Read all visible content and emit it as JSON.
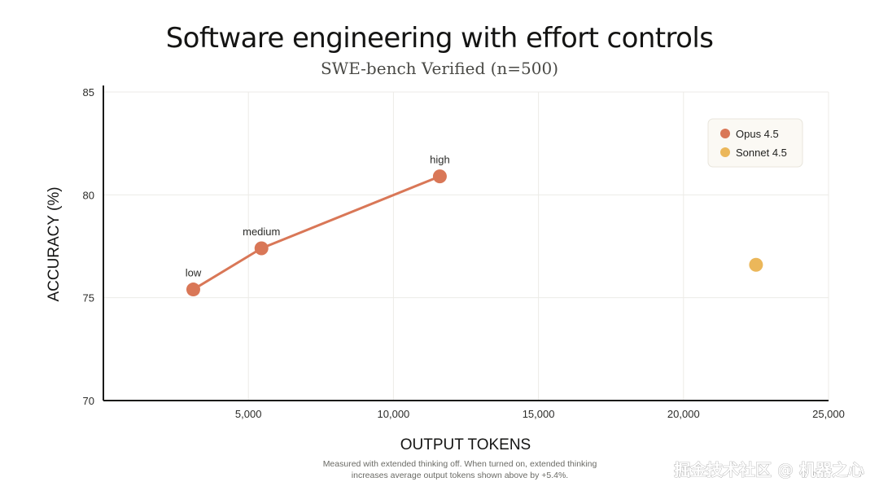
{
  "chart_data": {
    "type": "scatter",
    "title": "Software engineering with effort controls",
    "subtitle": "SWE-bench Verified (n=500)",
    "xlabel": "OUTPUT TOKENS",
    "ylabel": "ACCURACY (%)",
    "xlim": [
      0,
      25000
    ],
    "ylim": [
      70,
      85
    ],
    "x_ticks": [
      5000,
      10000,
      15000,
      20000,
      25000
    ],
    "x_tick_labels": [
      "5,000",
      "10,000",
      "15,000",
      "20,000",
      "25,000"
    ],
    "y_ticks": [
      70,
      75,
      80,
      85
    ],
    "y_tick_labels": [
      "70",
      "75",
      "80",
      "85"
    ],
    "grid": true,
    "legend_position": "top-right",
    "series": [
      {
        "name": "Opus 4.5",
        "color": "#d97757",
        "connected": true,
        "points": [
          {
            "x": 3100,
            "y": 75.4,
            "label": "low"
          },
          {
            "x": 5450,
            "y": 77.4,
            "label": "medium"
          },
          {
            "x": 11600,
            "y": 80.9,
            "label": "high"
          }
        ]
      },
      {
        "name": "Sonnet 4.5",
        "color": "#ebb75a",
        "connected": false,
        "points": [
          {
            "x": 22500,
            "y": 76.6,
            "label": ""
          }
        ]
      }
    ],
    "footnote": [
      "Measured with extended thinking off. When turned on, extended thinking",
      "increases average output tokens shown above by +5.4%."
    ]
  },
  "watermark": "掘金技术社区 @ 机器之心"
}
